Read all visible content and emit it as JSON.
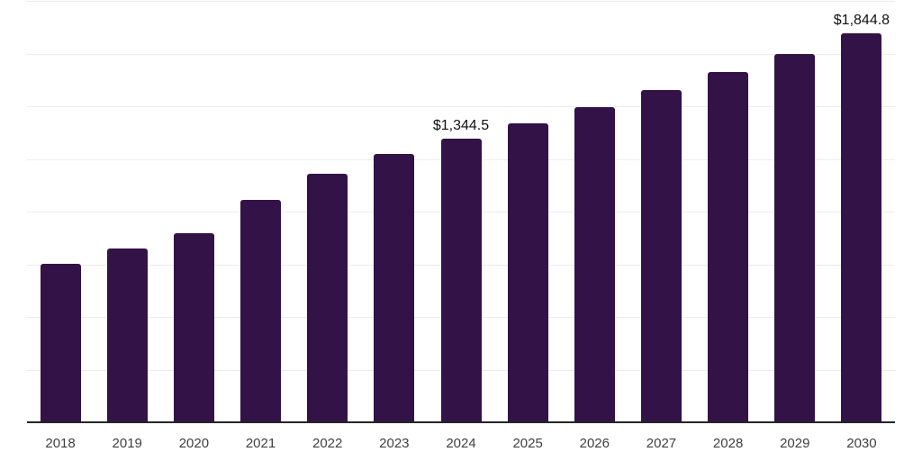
{
  "chart_data": {
    "type": "bar",
    "title": "",
    "xlabel": "",
    "ylabel": "",
    "value_unit_prefix": "$",
    "categories": [
      "2018",
      "2019",
      "2020",
      "2021",
      "2022",
      "2023",
      "2024",
      "2025",
      "2026",
      "2027",
      "2028",
      "2029",
      "2030"
    ],
    "values": [
      751,
      826,
      896,
      1057,
      1181,
      1274,
      1344.5,
      1420,
      1496,
      1577,
      1662,
      1750,
      1844.8
    ],
    "point_labels": [
      {
        "index": 6,
        "category": "2024",
        "text": "$1,344.5"
      },
      {
        "index": 12,
        "category": "2030",
        "text": "$1,844.8"
      }
    ],
    "ylim": [
      0,
      2000
    ],
    "gridline_step": 250,
    "grid": "horizontal-only",
    "legend_position": "none",
    "y_axis_labels_visible": false,
    "colors": {
      "bar": "#321247",
      "gridline": "#ececec",
      "axis_line": "#262626",
      "tick_label": "#404040",
      "data_label": "#111111",
      "background": "#ffffff"
    }
  }
}
